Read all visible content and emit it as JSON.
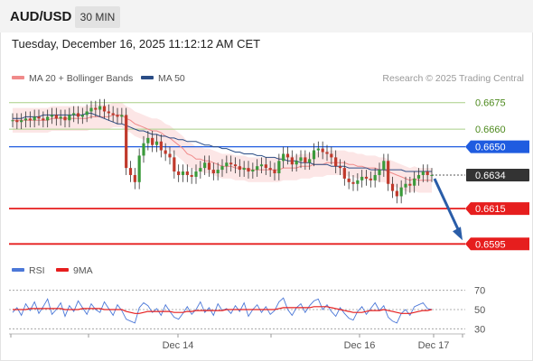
{
  "header": {
    "symbol": "AUD/USD",
    "timeframe": "30 MIN",
    "datetime": "Tuesday, December 16, 2025 11:12:12 AM CET"
  },
  "legend": {
    "ma20_label": "MA 20 + Bollinger Bands",
    "ma20_color": "#f08a8a",
    "ma50_label": "MA 50",
    "ma50_color": "#2b4d86",
    "credit": "Research © 2025 Trading Central"
  },
  "chart_data": {
    "type": "candlestick",
    "price_axis": {
      "range": [
        0.6588,
        0.6682
      ]
    },
    "x_labels": [
      "Dec 14",
      "Dec 16",
      "Dec 17"
    ],
    "levels": [
      {
        "value": "0.6675",
        "kind": "resistance-soft",
        "color": "#a9cf86"
      },
      {
        "value": "0.6660",
        "kind": "resistance-soft",
        "color": "#a9cf86"
      },
      {
        "value": "0.6650",
        "kind": "pivot",
        "color": "#1f5ce0"
      },
      {
        "value": "0.6634",
        "kind": "current",
        "color": "#333333"
      },
      {
        "value": "0.6615",
        "kind": "target",
        "color": "#e61e1e"
      },
      {
        "value": "0.6595",
        "kind": "target",
        "color": "#e61e1e"
      }
    ],
    "price_close": [
      0.6665,
      0.6664,
      0.6665,
      0.6666,
      0.6665,
      0.6667,
      0.6666,
      0.6665,
      0.6667,
      0.6668,
      0.6666,
      0.6667,
      0.6665,
      0.6668,
      0.6669,
      0.6667,
      0.6668,
      0.667,
      0.6672,
      0.6671,
      0.6673,
      0.667,
      0.6669,
      0.6668,
      0.6667,
      0.6668,
      0.6638,
      0.6634,
      0.663,
      0.6645,
      0.6652,
      0.6655,
      0.6651,
      0.6653,
      0.6648,
      0.6646,
      0.6644,
      0.6636,
      0.6634,
      0.6636,
      0.6634,
      0.6633,
      0.6636,
      0.6638,
      0.6641,
      0.6637,
      0.6635,
      0.6637,
      0.6639,
      0.6641,
      0.664,
      0.6639,
      0.6637,
      0.6638,
      0.6636,
      0.6637,
      0.6639,
      0.664,
      0.6638,
      0.6637,
      0.6635,
      0.6642,
      0.6646,
      0.6644,
      0.664,
      0.6642,
      0.6644,
      0.6641,
      0.6643,
      0.6648,
      0.6649,
      0.6647,
      0.6646,
      0.6644,
      0.6639,
      0.6638,
      0.6632,
      0.663,
      0.6629,
      0.6631,
      0.6633,
      0.6632,
      0.6631,
      0.6634,
      0.6637,
      0.6642,
      0.6629,
      0.6625,
      0.6622,
      0.6627,
      0.6629,
      0.6628,
      0.6632,
      0.6634,
      0.6636,
      0.6634,
      0.6634
    ],
    "ma20": [
      0.6665,
      0.6665,
      0.6665,
      0.6665,
      0.6665,
      0.6665,
      0.6665,
      0.6665,
      0.6665,
      0.6666,
      0.6666,
      0.6666,
      0.6666,
      0.6666,
      0.6666,
      0.6666,
      0.6666,
      0.6666,
      0.6667,
      0.6667,
      0.6667,
      0.6667,
      0.6667,
      0.6668,
      0.6668,
      0.6668,
      0.6666,
      0.6665,
      0.6663,
      0.6662,
      0.6661,
      0.666,
      0.6659,
      0.6659,
      0.6658,
      0.6656,
      0.6655,
      0.6653,
      0.6651,
      0.6649,
      0.6646,
      0.6645,
      0.6643,
      0.6643,
      0.6642,
      0.6642,
      0.6641,
      0.664,
      0.6639,
      0.6639,
      0.6639,
      0.6638,
      0.6638,
      0.6638,
      0.6637,
      0.6637,
      0.6637,
      0.6637,
      0.6637,
      0.6637,
      0.6637,
      0.6637,
      0.6638,
      0.6638,
      0.6638,
      0.6638,
      0.6639,
      0.6639,
      0.6639,
      0.664,
      0.664,
      0.664,
      0.6641,
      0.6641,
      0.6641,
      0.6641,
      0.6641,
      0.664,
      0.664,
      0.6639,
      0.6639,
      0.6638,
      0.6638,
      0.6638,
      0.6637,
      0.6637,
      0.6636,
      0.6635,
      0.6634,
      0.6633,
      0.6632,
      0.6631,
      0.6632,
      0.6631,
      0.6631,
      0.6631,
      0.6631
    ],
    "ma50": [
      0.6666,
      0.6666,
      0.6666,
      0.6667,
      0.6667,
      0.6667,
      0.6667,
      0.6668,
      0.6668,
      0.6668,
      0.6668,
      0.6668,
      0.6668,
      0.6668,
      0.6668,
      0.6668,
      0.6668,
      0.6669,
      0.6669,
      0.6668,
      0.6667,
      0.6666,
      0.6665,
      0.6664,
      0.6663,
      0.6663,
      0.6662,
      0.6661,
      0.666,
      0.6659,
      0.6659,
      0.6658,
      0.6657,
      0.6657,
      0.6656,
      0.6656,
      0.6655,
      0.6655,
      0.6654,
      0.6654,
      0.6653,
      0.6653,
      0.6653,
      0.6652,
      0.6651,
      0.6651,
      0.665,
      0.665,
      0.6649,
      0.6649,
      0.6648,
      0.6647,
      0.6647,
      0.6646,
      0.6646,
      0.6646,
      0.6645,
      0.6645,
      0.6644,
      0.6644,
      0.6644,
      0.6643,
      0.6643,
      0.6642,
      0.6642,
      0.6642,
      0.6641,
      0.6641,
      0.6641,
      0.664,
      0.664,
      0.664,
      0.664,
      0.6639,
      0.6639,
      0.6639,
      0.6639,
      0.6638,
      0.6638,
      0.6638,
      0.6638,
      0.6638,
      0.6637,
      0.6637,
      0.6637,
      0.6637,
      0.6637,
      0.6637,
      0.6637,
      0.6637,
      0.6636,
      0.6636,
      0.6636,
      0.6636,
      0.6636,
      0.6636,
      0.6636
    ],
    "bb_width": 0.0007,
    "projection": {
      "from": 0.6634,
      "to": 0.6595
    }
  },
  "rsi_panel": {
    "rsi_label": "RSI",
    "rsi_color": "#4c78d8",
    "ma9_label": "9MA",
    "ma9_color": "#e61e1e",
    "levels": [
      70,
      50,
      30
    ],
    "range": [
      20,
      80
    ],
    "rsi": [
      47,
      52,
      44,
      56,
      49,
      58,
      46,
      53,
      61,
      45,
      50,
      57,
      43,
      54,
      48,
      59,
      52,
      45,
      56,
      50,
      47,
      58,
      51,
      44,
      55,
      49,
      40,
      38,
      36,
      52,
      57,
      54,
      47,
      51,
      44,
      55,
      48,
      42,
      40,
      46,
      53,
      45,
      50,
      58,
      47,
      52,
      44,
      56,
      49,
      51,
      46,
      54,
      48,
      57,
      43,
      50,
      55,
      47,
      53,
      45,
      49,
      58,
      62,
      50,
      44,
      52,
      56,
      47,
      54,
      59,
      61,
      50,
      55,
      48,
      43,
      52,
      46,
      41,
      39,
      48,
      53,
      45,
      51,
      57,
      49,
      54,
      42,
      38,
      36,
      46,
      50,
      44,
      53,
      55,
      57,
      51,
      50
    ],
    "ma9": [
      50,
      50,
      50,
      50,
      51,
      51,
      51,
      51,
      51,
      51,
      51,
      51,
      50,
      50,
      50,
      50,
      51,
      51,
      51,
      51,
      51,
      50,
      50,
      50,
      50,
      50,
      48,
      47,
      46,
      46,
      47,
      48,
      48,
      48,
      48,
      48,
      48,
      47,
      47,
      47,
      48,
      48,
      49,
      49,
      49,
      49,
      49,
      49,
      49,
      50,
      50,
      50,
      50,
      50,
      50,
      50,
      50,
      50,
      50,
      50,
      50,
      51,
      52,
      52,
      52,
      52,
      52,
      52,
      52,
      53,
      53,
      53,
      53,
      52,
      51,
      50,
      49,
      48,
      47,
      47,
      47,
      48,
      49,
      49,
      49,
      50,
      49,
      48,
      47,
      46,
      46,
      46,
      47,
      48,
      49,
      49,
      50
    ]
  }
}
